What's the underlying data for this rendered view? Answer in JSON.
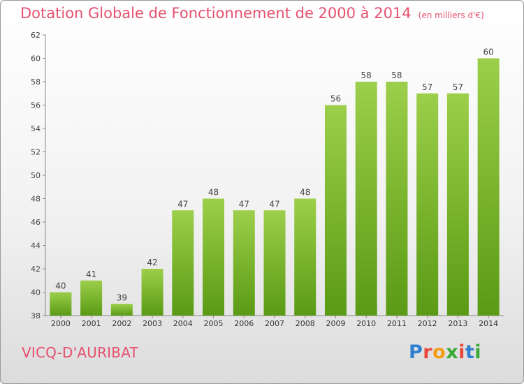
{
  "header": {
    "title": "Dotation Globale de Fonctionnement de 2000 à 2014",
    "unit": "(en milliers d'€)"
  },
  "footer": {
    "commune": "VICQ-D'AURIBAT",
    "logo": "Proxiti"
  },
  "colors": {
    "title": "#e6506e",
    "bar_top": "#9ccf4b",
    "bar_bottom": "#5a9a14"
  },
  "chart_data": {
    "type": "bar",
    "categories": [
      "2000",
      "2001",
      "2002",
      "2003",
      "2004",
      "2005",
      "2006",
      "2007",
      "2008",
      "2009",
      "2010",
      "2011",
      "2012",
      "2013",
      "2014"
    ],
    "values": [
      40,
      41,
      39,
      42,
      47,
      48,
      47,
      47,
      48,
      56,
      58,
      58,
      57,
      57,
      60
    ],
    "ylim": [
      38,
      62
    ],
    "yticks": [
      38,
      40,
      42,
      44,
      46,
      48,
      50,
      52,
      54,
      56,
      58,
      60,
      62
    ],
    "grid": false,
    "data_labels": true
  }
}
